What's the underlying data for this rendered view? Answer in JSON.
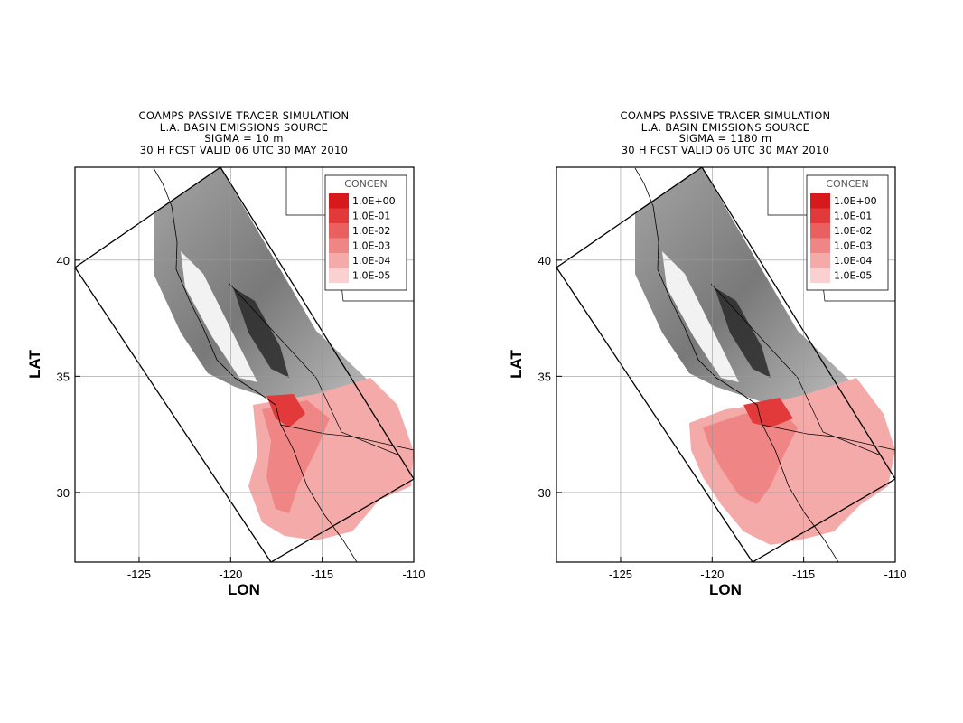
{
  "panels": [
    {
      "title_lines": [
        "COAMPS PASSIVE TRACER SIMULATION",
        "L.A. BASIN EMISSIONS SOURCE",
        "SIGMA = 10 m",
        "30 H FCST VALID 06 UTC 30 MAY 2010"
      ],
      "sigma": "10 m"
    },
    {
      "title_lines": [
        "COAMPS PASSIVE TRACER SIMULATION",
        "L.A. BASIN EMISSIONS SOURCE",
        "SIGMA = 1180 m",
        "30 H FCST VALID 06 UTC 30 MAY 2010"
      ],
      "sigma": "1180 m"
    }
  ],
  "axes": {
    "xlabel": "LON",
    "ylabel": "LAT",
    "xlim": [
      -128.5,
      -110
    ],
    "ylim": [
      27,
      44
    ],
    "xticks": [
      "-125",
      "-120",
      "-115",
      "-110"
    ],
    "xtick_values": [
      -125,
      -120,
      -115,
      -110
    ],
    "yticks": [
      "40",
      "35",
      "30"
    ],
    "ytick_values": [
      40,
      35,
      30
    ],
    "grid": true
  },
  "legend": {
    "title": "CONCEN",
    "placement": "top-right",
    "entries": [
      {
        "label": "1.0E+00",
        "color": "#d7191c"
      },
      {
        "label": "1.0E-01",
        "color": "#e23a3b"
      },
      {
        "label": "1.0E-02",
        "color": "#ea5f5f"
      },
      {
        "label": "1.0E-03",
        "color": "#f08585"
      },
      {
        "label": "1.0E-04",
        "color": "#f5aaaa"
      },
      {
        "label": "1.0E-05",
        "color": "#fad0d0"
      }
    ]
  }
}
